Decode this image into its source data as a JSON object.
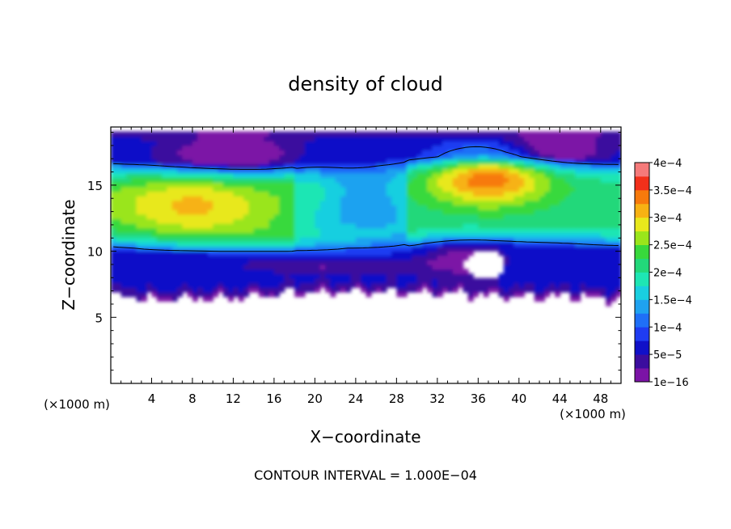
{
  "chart_data": {
    "type": "heatmap",
    "title": "density of cloud",
    "xlabel": "X−coordinate",
    "ylabel": "Z−coordinate",
    "x_unit": "(×1000 m)",
    "y_unit": "(×1000 m)",
    "xlim": [
      0,
      50
    ],
    "ylim": [
      0,
      19.4
    ],
    "x_ticks": [
      4,
      8,
      12,
      16,
      20,
      24,
      28,
      32,
      36,
      40,
      44,
      48
    ],
    "y_ticks": [
      5,
      10,
      15
    ],
    "footer": "CONTOUR INTERVAL = 1.000E−04",
    "colorbar": {
      "labels": [
        "1e−16",
        "5e−5",
        "1e−4",
        "1.5e−4",
        "2e−4",
        "2.5e−4",
        "3e−4",
        "3.5e−4",
        "4e−4"
      ],
      "label_values": [
        0,
        5e-05,
        0.0001,
        0.00015,
        0.0002,
        0.00025,
        0.0003,
        0.00035,
        0.0004
      ],
      "levels": 16,
      "colors": [
        "#7b13a6",
        "#3b0d9e",
        "#1010c8",
        "#1f3cf2",
        "#1f6ff7",
        "#1fa2f0",
        "#19cfe0",
        "#1ee6b4",
        "#22d87a",
        "#38d93c",
        "#9ae51b",
        "#e8e81c",
        "#f7b213",
        "#f77a0c",
        "#f2301a",
        "#f57a7a"
      ]
    },
    "contour_interval": 0.0001,
    "cloud_base_z": [
      6.6,
      6.4,
      6.5,
      6.7,
      7.0,
      7.0,
      6.9,
      6.8,
      6.6,
      6.7,
      6.4
    ],
    "cloud_base_x": [
      0,
      5,
      10,
      15,
      20,
      25,
      30,
      35,
      40,
      45,
      50
    ],
    "cloud_top_z": 19.2,
    "core_layer_z": [
      11.0,
      16.0
    ],
    "core_value": 0.00016
  }
}
